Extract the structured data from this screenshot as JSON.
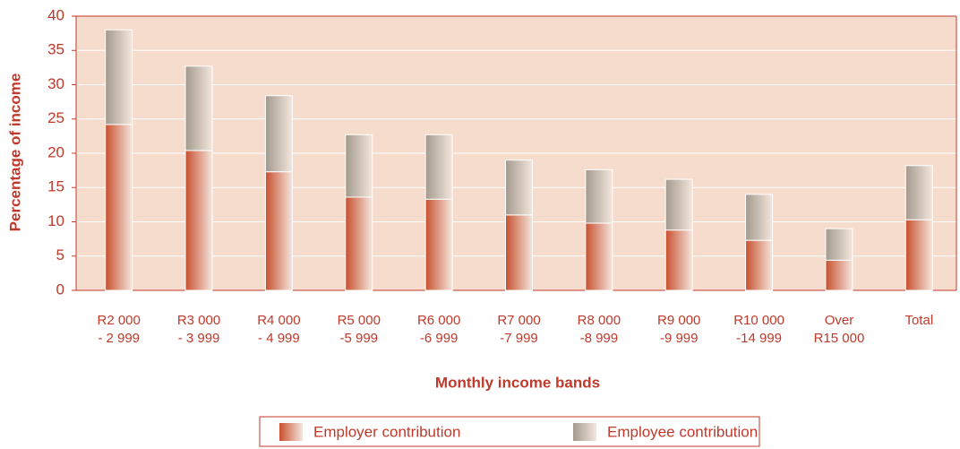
{
  "chart_data": {
    "type": "stacked_bar",
    "y_label": "Percentage of income",
    "x_label": "Monthly income bands",
    "categories": [
      [
        "R2 000",
        "- 2 999"
      ],
      [
        "R3 000",
        "- 3 999"
      ],
      [
        "R4 000",
        "- 4 999"
      ],
      [
        "R5 000",
        "-5 999"
      ],
      [
        "R6 000",
        "-6 999"
      ],
      [
        "R7 000",
        "-7 999"
      ],
      [
        "R8 000",
        "-8 999"
      ],
      [
        "R9 000",
        "-9 999"
      ],
      [
        "R10 000",
        "-14 999"
      ],
      [
        "Over",
        "R15 000"
      ],
      [
        "Total"
      ]
    ],
    "series": [
      {
        "name": "Employer contribution",
        "color": "#c8502f",
        "values": [
          24.2,
          20.4,
          17.3,
          13.6,
          13.3,
          11.0,
          9.8,
          8.8,
          7.3,
          4.4,
          10.3
        ]
      },
      {
        "name": "Employee contribution",
        "color": "#a39a8e",
        "values": [
          13.8,
          12.3,
          11.1,
          9.1,
          9.4,
          8.0,
          7.8,
          7.4,
          6.7,
          4.6,
          7.9
        ]
      }
    ],
    "ylim": [
      0,
      40
    ],
    "yticks": [
      0,
      5,
      10,
      15,
      20,
      25,
      30,
      35,
      40
    ],
    "grid": true,
    "legend": "bottom"
  }
}
